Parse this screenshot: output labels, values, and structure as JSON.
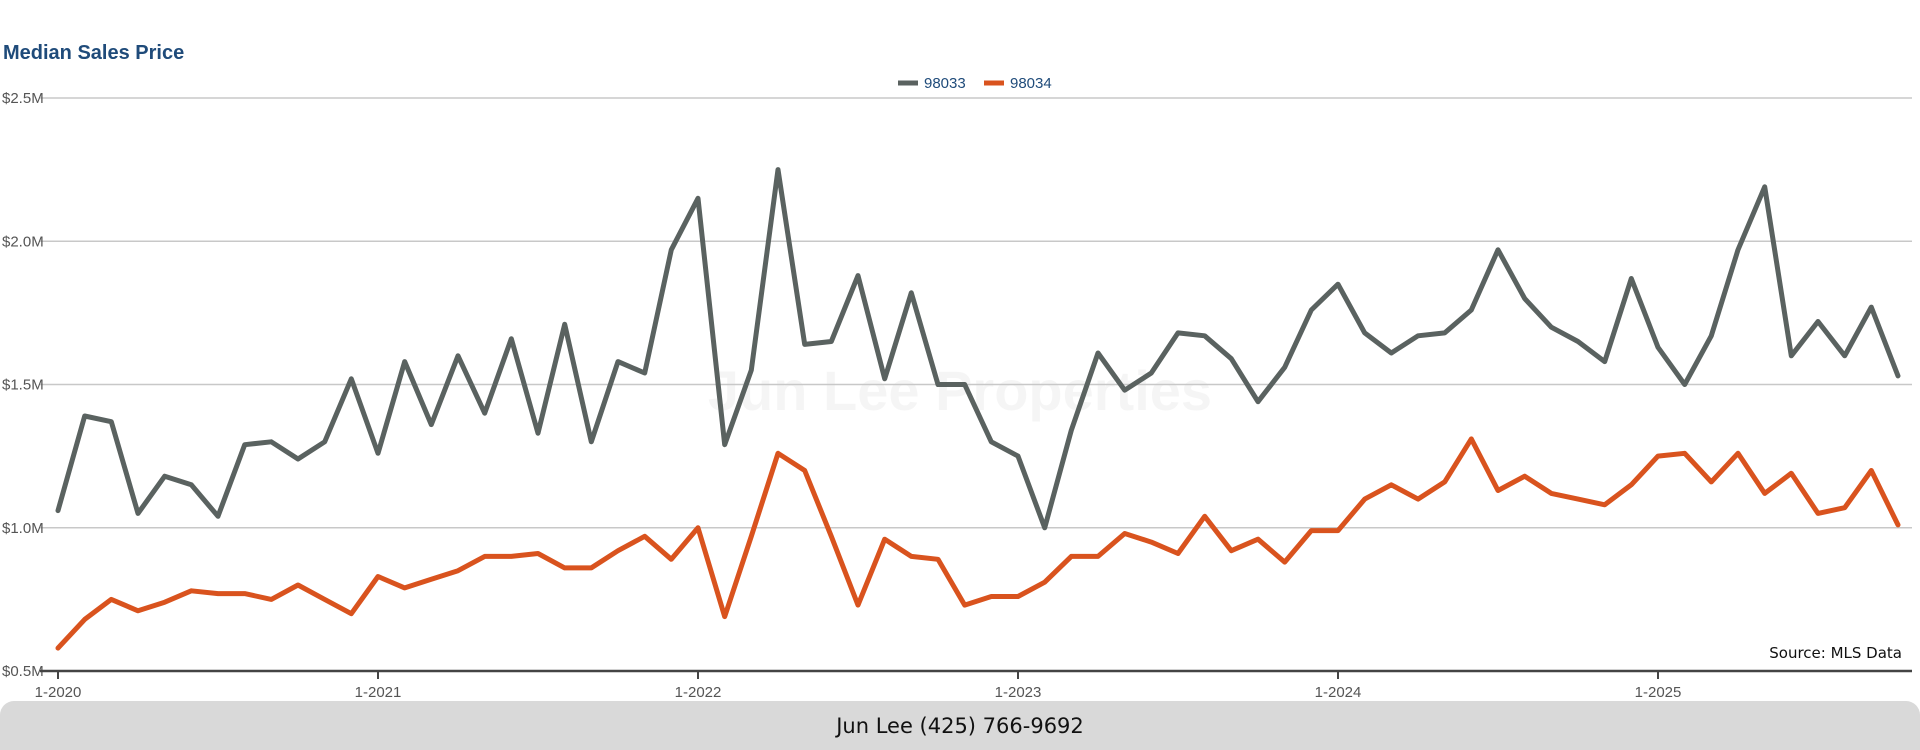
{
  "chart_data": {
    "type": "line",
    "title": "Median Sales Price",
    "watermark": "Jun Lee Properties",
    "source_note": "Source: MLS Data",
    "footer": "Jun Lee (425) 766-9692",
    "legend_position": "top-center",
    "grid": true,
    "y_ticks": [
      "$0.5M",
      "$1.0M",
      "$1.5M",
      "$2.0M",
      "$2.5M"
    ],
    "y_tick_values": [
      0.5,
      1.0,
      1.5,
      2.0,
      2.5
    ],
    "ylim": [
      0.5,
      2.5
    ],
    "x_ticks": [
      "1-2020",
      "1-2021",
      "1-2022",
      "1-2023",
      "1-2024",
      "1-2025"
    ],
    "x_tick_months": [
      0,
      12,
      24,
      36,
      48,
      60
    ],
    "x_domain_months": [
      0,
      69
    ],
    "series": [
      {
        "name": "98033",
        "color": "#5a6260",
        "values": [
          1.06,
          1.39,
          1.37,
          1.05,
          1.18,
          1.15,
          1.04,
          1.29,
          1.3,
          1.24,
          1.3,
          1.52,
          1.26,
          1.58,
          1.36,
          1.6,
          1.4,
          1.66,
          1.33,
          1.71,
          1.3,
          1.58,
          1.54,
          1.97,
          2.15,
          1.29,
          1.55,
          2.25,
          1.64,
          1.65,
          1.88,
          1.52,
          1.82,
          1.5,
          1.5,
          1.3,
          1.25,
          1.0,
          1.34,
          1.61,
          1.48,
          1.54,
          1.68,
          1.67,
          1.59,
          1.44,
          1.56,
          1.76,
          1.85,
          1.68,
          1.61,
          1.67,
          1.68,
          1.76,
          1.97,
          1.8,
          1.7,
          1.65,
          1.58,
          1.87,
          1.63,
          1.5,
          1.67,
          1.97,
          2.19,
          1.6,
          1.72,
          1.6,
          1.77,
          1.53
        ]
      },
      {
        "name": "98034",
        "color": "#d9531e",
        "values": [
          0.58,
          0.68,
          0.75,
          0.71,
          0.74,
          0.78,
          0.77,
          0.77,
          0.75,
          0.8,
          0.75,
          0.7,
          0.83,
          0.79,
          0.82,
          0.85,
          0.9,
          0.9,
          0.91,
          0.86,
          0.86,
          0.92,
          0.97,
          0.89,
          1.0,
          0.69,
          0.97,
          1.26,
          1.2,
          0.97,
          0.73,
          0.96,
          0.9,
          0.89,
          0.73,
          0.76,
          0.76,
          0.81,
          0.9,
          0.9,
          0.98,
          0.95,
          0.91,
          1.04,
          0.92,
          0.96,
          0.88,
          0.99,
          0.99,
          1.1,
          1.15,
          1.1,
          1.16,
          1.31,
          1.13,
          1.18,
          1.12,
          1.1,
          1.08,
          1.15,
          1.25,
          1.26,
          1.16,
          1.26,
          1.12,
          1.19,
          1.05,
          1.07,
          1.2,
          1.01
        ]
      }
    ]
  }
}
